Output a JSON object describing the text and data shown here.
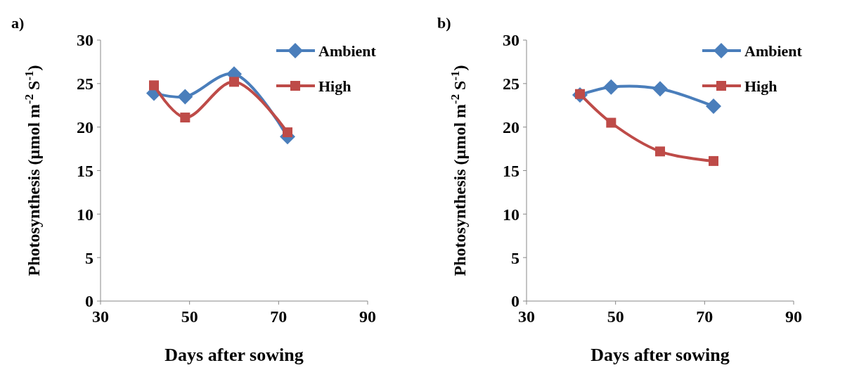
{
  "chart_data": [
    {
      "type": "line",
      "annotations": [
        "a)"
      ],
      "xlabel": "Days after sowing",
      "ylabel": "Photosynthesis (µmol m$^{-2}$ S$^{-1}$)",
      "x": [
        42,
        49,
        60,
        72
      ],
      "xlim": [
        30,
        90
      ],
      "xticks": [
        30,
        50,
        70,
        90
      ],
      "ylim": [
        0,
        30
      ],
      "yticks": [
        0,
        5,
        10,
        15,
        20,
        25,
        30
      ],
      "legend": "top right",
      "grid": false,
      "series": [
        {
          "name": "Ambient",
          "color": "#4a7ebb",
          "marker": "diamond",
          "values": [
            23.9,
            23.5,
            26.1,
            18.9
          ]
        },
        {
          "name": "High",
          "color": "#be4b48",
          "marker": "square",
          "values": [
            24.8,
            21.1,
            25.2,
            19.4
          ]
        }
      ]
    },
    {
      "type": "line",
      "annotations": [
        "b)"
      ],
      "xlabel": "Days after sowing",
      "ylabel": "Photosynthesis (µmol  m$^{-2}$ S$^{-1}$)",
      "x": [
        42,
        49,
        60,
        72
      ],
      "xlim": [
        30,
        90
      ],
      "xticks": [
        30,
        50,
        70,
        90
      ],
      "ylim": [
        0,
        30
      ],
      "yticks": [
        0,
        5,
        10,
        15,
        20,
        25,
        30
      ],
      "legend": "top right",
      "grid": false,
      "series": [
        {
          "name": "Ambient",
          "color": "#4a7ebb",
          "marker": "diamond",
          "values": [
            23.7,
            24.6,
            24.4,
            22.4
          ]
        },
        {
          "name": "High",
          "color": "#be4b48",
          "marker": "square",
          "values": [
            23.8,
            20.5,
            17.2,
            16.1
          ]
        }
      ]
    }
  ]
}
